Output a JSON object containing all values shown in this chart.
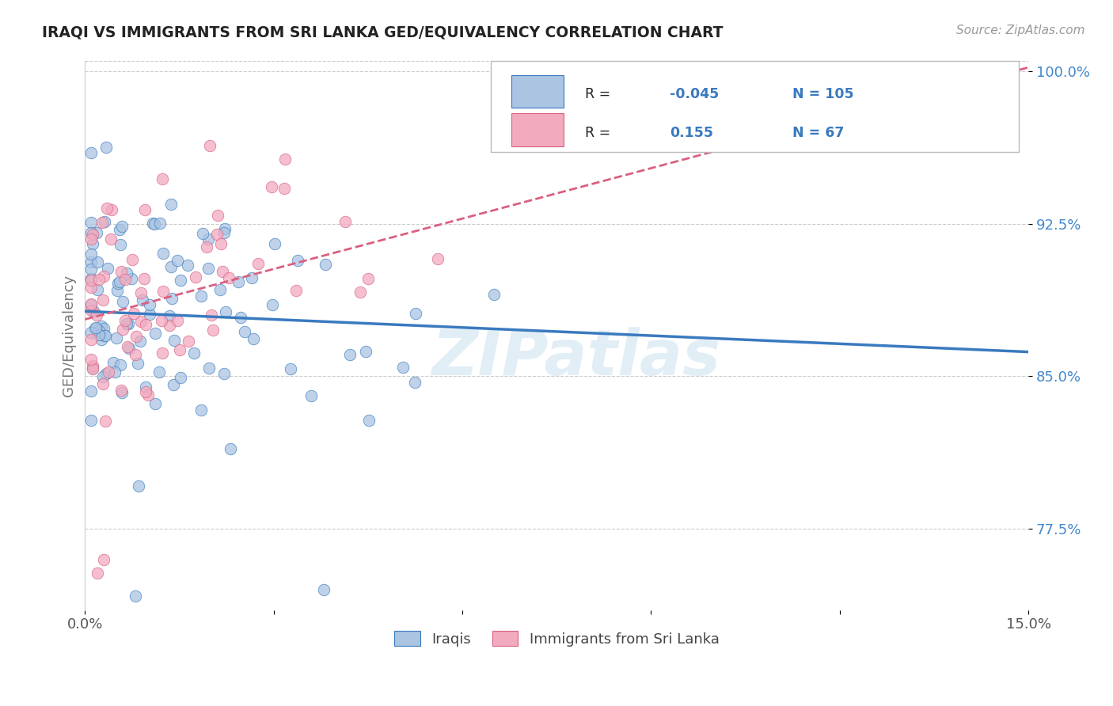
{
  "title": "IRAQI VS IMMIGRANTS FROM SRI LANKA GED/EQUIVALENCY CORRELATION CHART",
  "source": "Source: ZipAtlas.com",
  "ylabel": "GED/Equivalency",
  "xlim": [
    0.0,
    0.15
  ],
  "ylim": [
    0.735,
    1.005
  ],
  "yticks": [
    0.775,
    0.85,
    0.925,
    1.0
  ],
  "yticklabels": [
    "77.5%",
    "85.0%",
    "92.5%",
    "100.0%"
  ],
  "blue_R": -0.045,
  "blue_N": 105,
  "pink_R": 0.155,
  "pink_N": 67,
  "blue_color": "#aac4e2",
  "pink_color": "#f2aabf",
  "blue_line_color": "#3a7abf",
  "pink_line_color": "#d96080",
  "watermark": "ZIPatlas",
  "legend_label_blue": "Iraqis",
  "legend_label_pink": "Immigrants from Sri Lanka",
  "blue_line_x0": 0.0,
  "blue_line_y0": 0.882,
  "blue_line_x1": 0.15,
  "blue_line_y1": 0.862,
  "pink_line_x0": 0.0,
  "pink_line_y0": 0.878,
  "pink_line_x1": 0.15,
  "pink_line_y1": 1.002,
  "seed_blue": 42,
  "seed_pink": 99
}
